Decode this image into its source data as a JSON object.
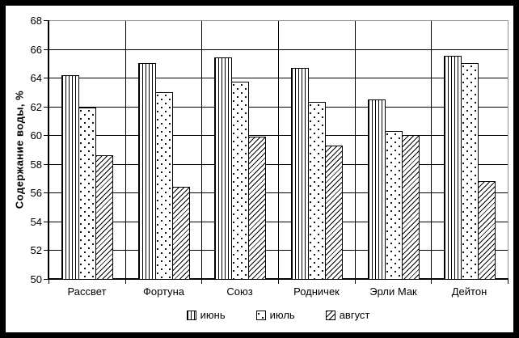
{
  "chart_data": {
    "type": "bar",
    "title": "",
    "xlabel": "",
    "ylabel": "Содержание воды, %",
    "ylim": [
      50,
      68
    ],
    "ytick_step": 2,
    "grid": true,
    "legend_position": "bottom",
    "categories": [
      "Рассвет",
      "Фортуна",
      "Союз",
      "Родничек",
      "Эрли Мак",
      "Дейтон"
    ],
    "series": [
      {
        "name": "июнь",
        "pattern": "vertical-stripes",
        "values": [
          64.2,
          65.0,
          65.4,
          64.7,
          62.5,
          65.5
        ]
      },
      {
        "name": "июль",
        "pattern": "dots",
        "values": [
          61.9,
          63.0,
          63.7,
          62.3,
          60.3,
          65.0
        ]
      },
      {
        "name": "август",
        "pattern": "diagonal-hatch",
        "values": [
          58.6,
          56.4,
          59.9,
          59.3,
          60.0,
          56.8
        ]
      }
    ],
    "colors": {
      "foreground": "#000000",
      "background": "#ffffff",
      "frame": "#000000",
      "plot_border_light": "#909090"
    }
  }
}
